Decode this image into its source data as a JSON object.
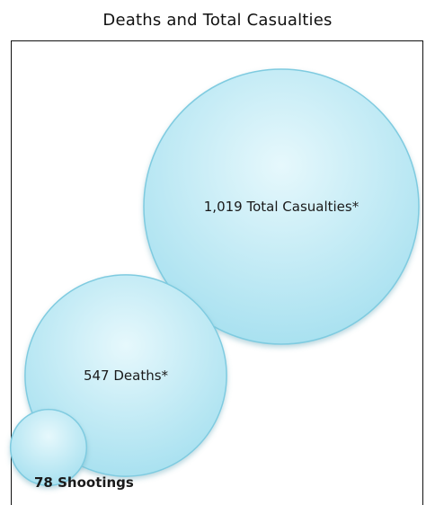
{
  "chart_data": {
    "type": "bubble",
    "title": "Deaths and Total Casualties",
    "points": [
      {
        "label": "1,019 Total Casualties*",
        "value": 1019
      },
      {
        "label": "547 Deaths*",
        "value": 547
      },
      {
        "label": "78 Shootings",
        "value": 78
      }
    ],
    "colors": {
      "bubble_fill_light": "#e6f8fc",
      "bubble_fill_dark": "#a9e1f0",
      "bubble_stroke": "#7fcbe0"
    }
  }
}
